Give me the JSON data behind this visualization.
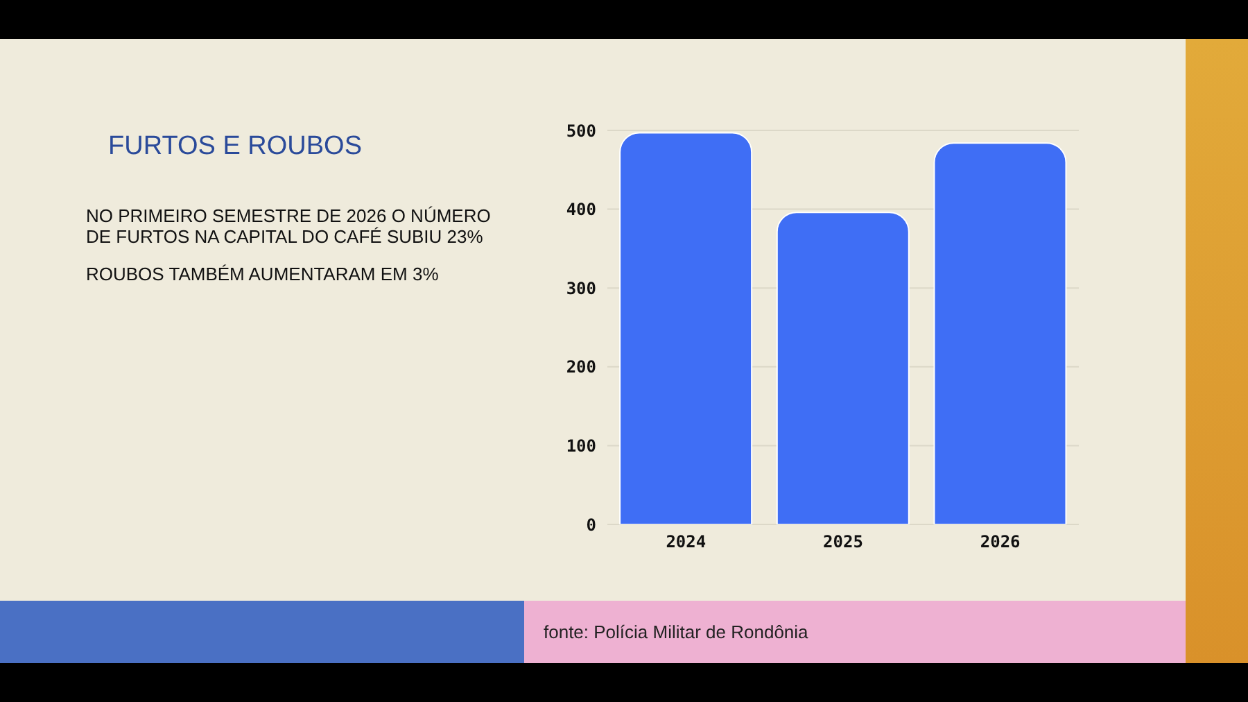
{
  "chart_data": {
    "type": "bar",
    "title": "FURTOS E ROUBOS",
    "annotations": [
      "NO PRIMEIRO SEMESTRE DE 2026 O NÚMERO DE FURTOS NA CAPITAL DO CAFÉ SUBIU 23%",
      "ROUBOS TAMBÉM AUMENTARAM EM 3%",
      "fonte: Polícia Militar de Rondônia"
    ],
    "categories": [
      "2024",
      "2025",
      "2026"
    ],
    "values": [
      497,
      396,
      484
    ],
    "color": "#3f6ef5",
    "ylim": [
      0,
      500
    ],
    "yticks": [
      0,
      100,
      200,
      300,
      400,
      500
    ],
    "grid": "y"
  }
}
